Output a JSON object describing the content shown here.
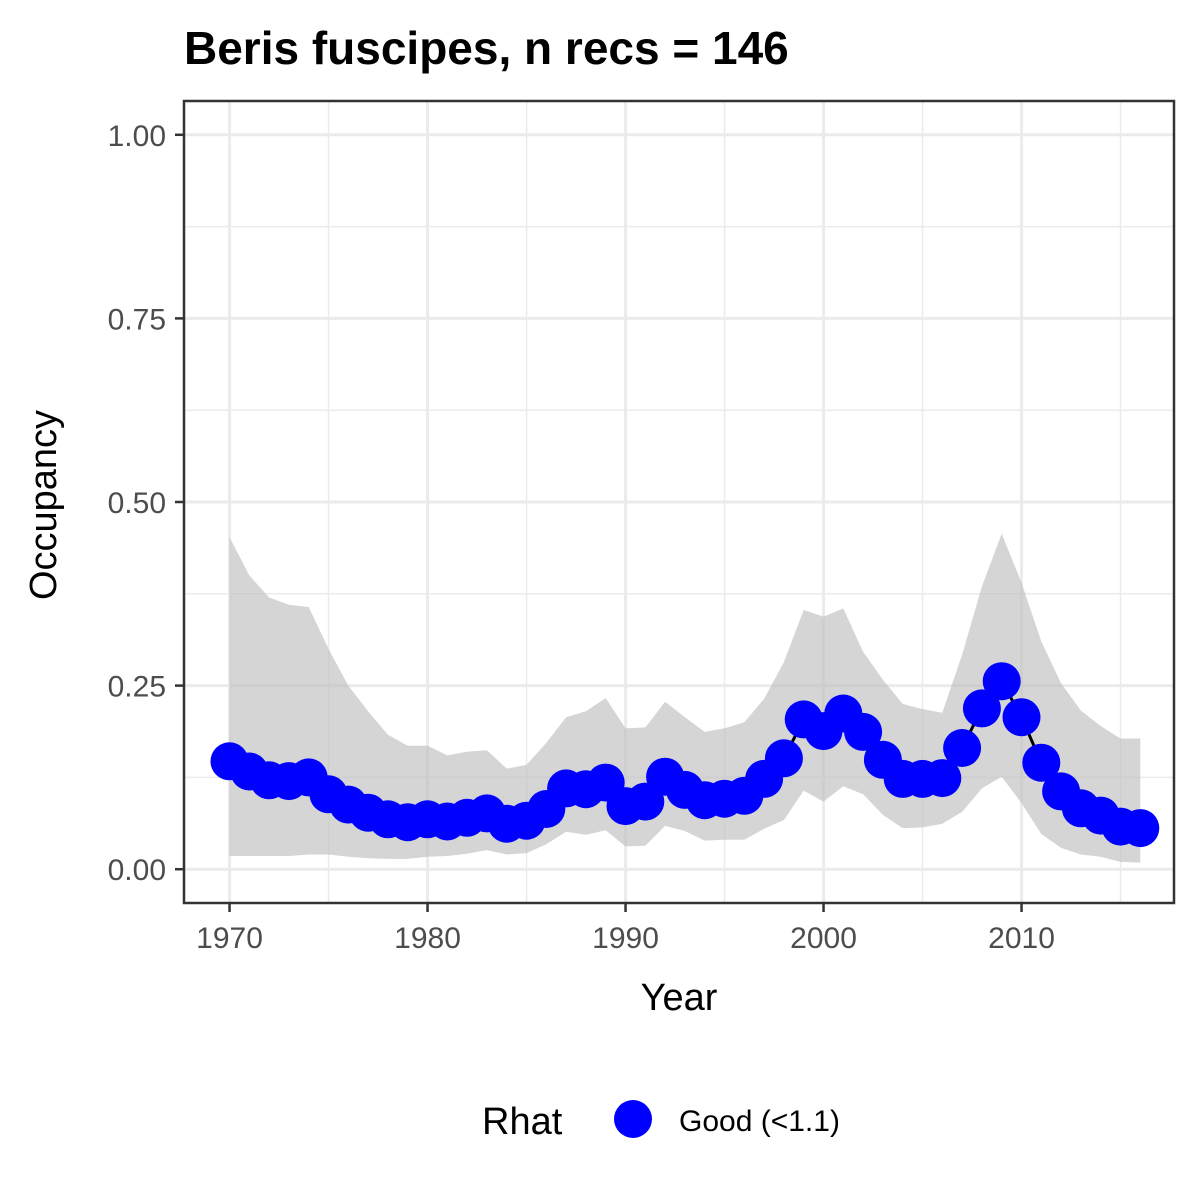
{
  "chart_data": {
    "type": "line",
    "title": "Beris fuscipes, n recs = 146",
    "xlabel": "Year",
    "ylabel": "Occupancy",
    "xlim": [
      1967.7,
      2017.7
    ],
    "ylim": [
      -0.046,
      1.046
    ],
    "x_ticks": [
      1970,
      1980,
      1990,
      2000,
      2010
    ],
    "x_tick_labels": [
      "1970",
      "1980",
      "1990",
      "2000",
      "2010"
    ],
    "y_ticks": [
      0,
      0.25,
      0.5,
      0.75,
      1
    ],
    "y_tick_labels": [
      "0.00",
      "0.25",
      "0.50",
      "0.75",
      "1.00"
    ],
    "grid": true,
    "legend": {
      "title": "Rhat",
      "placement": "bottom",
      "entries": [
        "Good (<1.1)"
      ]
    },
    "colors": {
      "points": "#0000ff",
      "line": "#000000",
      "ribbon": "#bfbfbf",
      "grid": "#ebebeb",
      "border": "#333333"
    },
    "x": [
      1970,
      1971,
      1972,
      1973,
      1974,
      1975,
      1976,
      1977,
      1978,
      1979,
      1980,
      1981,
      1982,
      1983,
      1984,
      1985,
      1986,
      1987,
      1988,
      1989,
      1990,
      1991,
      1992,
      1993,
      1994,
      1995,
      1996,
      1997,
      1998,
      1999,
      2000,
      2001,
      2002,
      2003,
      2004,
      2005,
      2006,
      2007,
      2008,
      2009,
      2010,
      2011,
      2012,
      2013,
      2014,
      2015,
      2016
    ],
    "series": [
      {
        "name": "Good (<1.1)",
        "values": [
          0.147,
          0.133,
          0.121,
          0.12,
          0.125,
          0.102,
          0.088,
          0.077,
          0.068,
          0.064,
          0.068,
          0.065,
          0.07,
          0.076,
          0.062,
          0.066,
          0.082,
          0.11,
          0.109,
          0.118,
          0.086,
          0.092,
          0.126,
          0.108,
          0.094,
          0.096,
          0.1,
          0.123,
          0.151,
          0.204,
          0.188,
          0.212,
          0.187,
          0.149,
          0.123,
          0.123,
          0.124,
          0.165,
          0.219,
          0.256,
          0.207,
          0.145,
          0.106,
          0.083,
          0.073,
          0.058,
          0.056
        ],
        "lower": [
          0.018,
          0.018,
          0.018,
          0.018,
          0.02,
          0.02,
          0.017,
          0.015,
          0.014,
          0.014,
          0.017,
          0.018,
          0.021,
          0.026,
          0.02,
          0.022,
          0.034,
          0.051,
          0.047,
          0.053,
          0.031,
          0.032,
          0.059,
          0.052,
          0.039,
          0.04,
          0.04,
          0.055,
          0.067,
          0.107,
          0.092,
          0.113,
          0.102,
          0.074,
          0.056,
          0.057,
          0.062,
          0.078,
          0.11,
          0.126,
          0.09,
          0.048,
          0.029,
          0.02,
          0.017,
          0.01,
          0.009
        ],
        "upper": [
          0.452,
          0.4,
          0.37,
          0.36,
          0.357,
          0.3,
          0.25,
          0.215,
          0.183,
          0.168,
          0.168,
          0.155,
          0.16,
          0.162,
          0.137,
          0.142,
          0.172,
          0.207,
          0.215,
          0.233,
          0.192,
          0.193,
          0.228,
          0.207,
          0.187,
          0.192,
          0.2,
          0.232,
          0.282,
          0.353,
          0.344,
          0.355,
          0.296,
          0.258,
          0.225,
          0.218,
          0.213,
          0.292,
          0.385,
          0.457,
          0.39,
          0.31,
          0.253,
          0.216,
          0.195,
          0.178,
          0.178
        ]
      }
    ]
  }
}
